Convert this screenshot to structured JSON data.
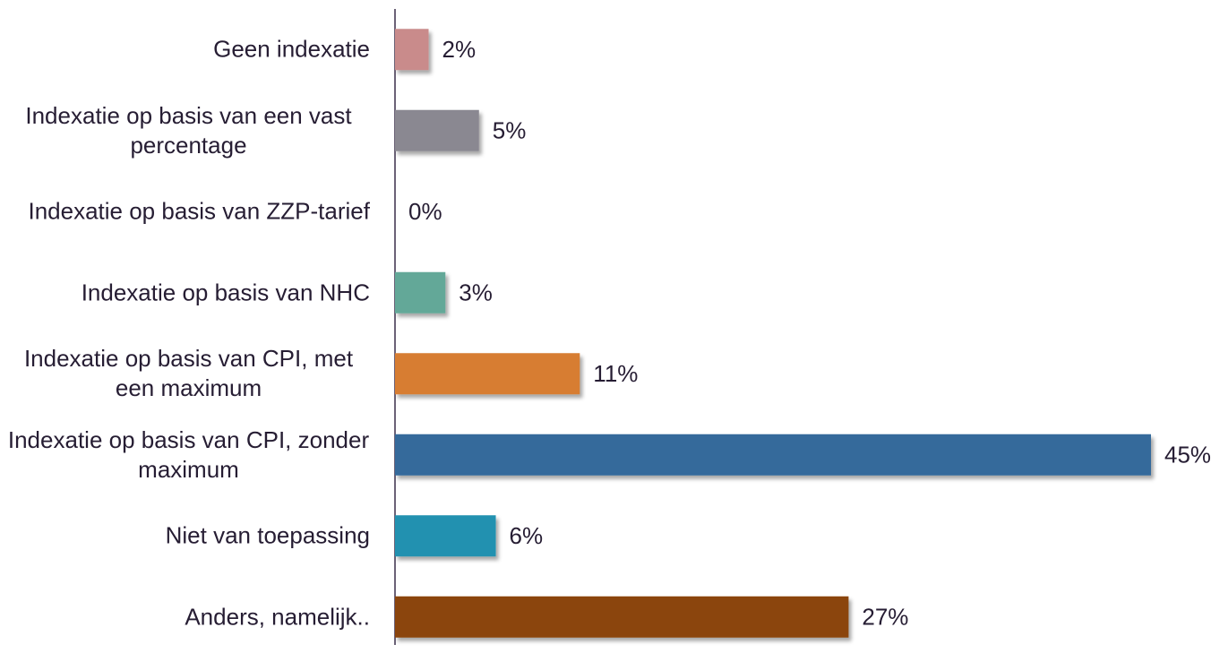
{
  "chart_data": {
    "type": "bar",
    "orientation": "horizontal",
    "categories": [
      "Geen indexatie",
      "Indexatie op basis van een vast percentage",
      "Indexatie op basis van ZZP-tarief",
      "Indexatie op basis van NHC",
      "Indexatie op basis van CPI, met een maximum",
      "Indexatie op basis van CPI, zonder maximum",
      "Niet van toepassing",
      "Anders, namelijk.."
    ],
    "values": [
      2,
      5,
      0,
      3,
      11,
      45,
      6,
      27
    ],
    "value_labels": [
      "2%",
      "5%",
      "0%",
      "3%",
      "11%",
      "45%",
      "6%",
      "27%"
    ],
    "colors": [
      "#c98b8b",
      "#8a8891",
      "#a0a0a0",
      "#63a898",
      "#d77d33",
      "#356a9b",
      "#2191b0",
      "#8b450c"
    ]
  }
}
